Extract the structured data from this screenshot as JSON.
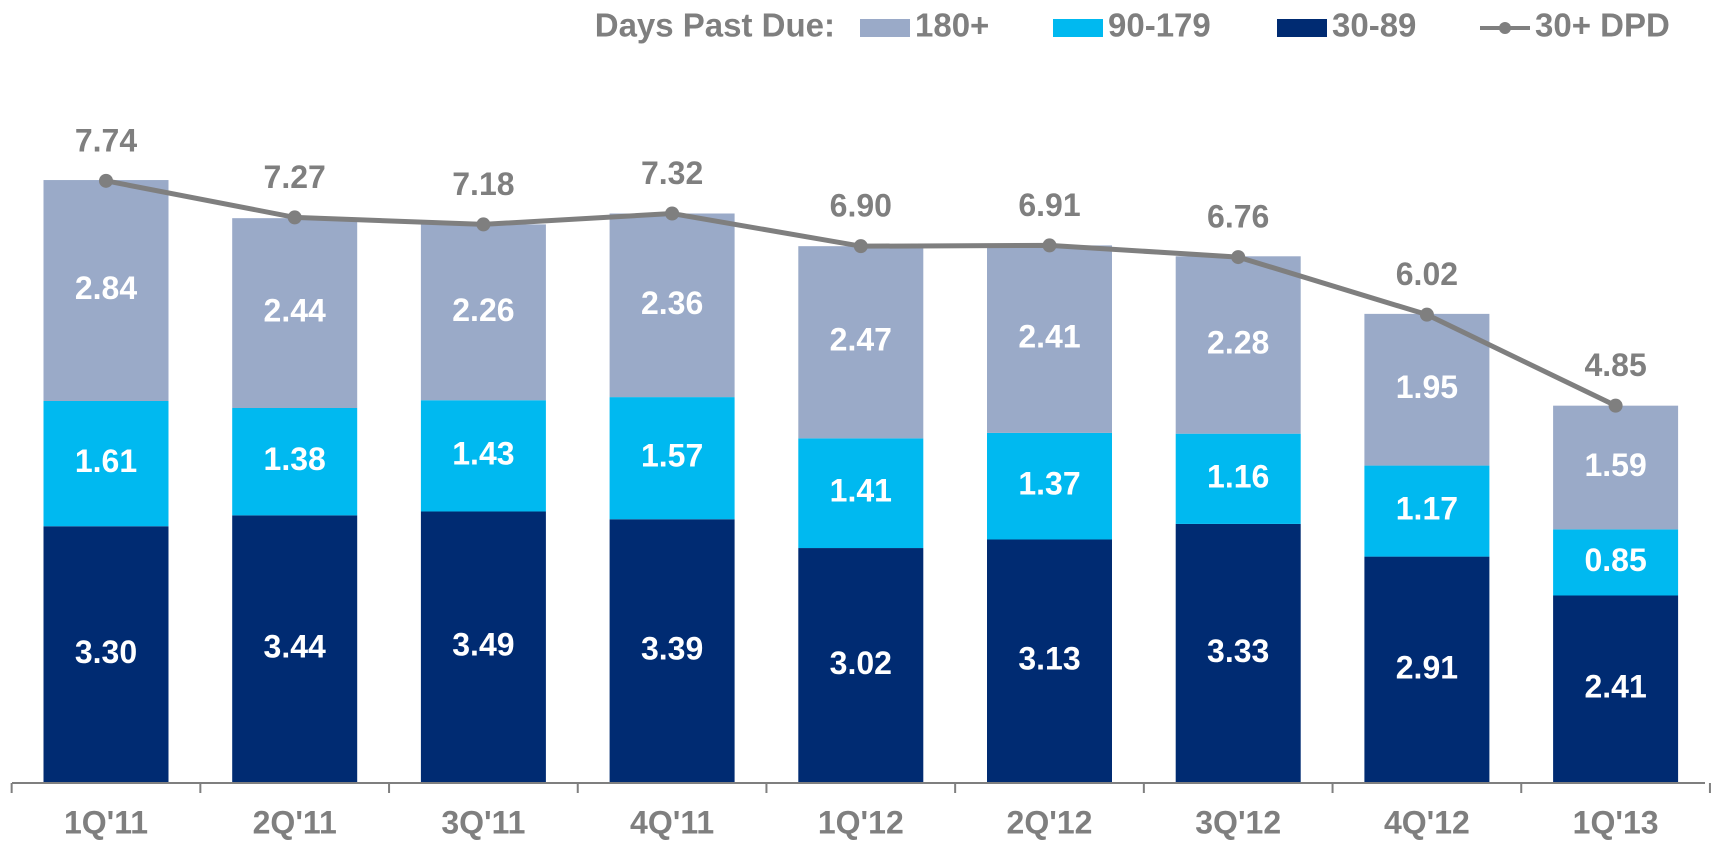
{
  "chart_data": {
    "type": "bar",
    "stacked": true,
    "legend_title": "Days Past Due:",
    "categories": [
      "1Q'11",
      "2Q'11",
      "3Q'11",
      "4Q'11",
      "1Q'12",
      "2Q'12",
      "3Q'12",
      "4Q'12",
      "1Q'13"
    ],
    "series": [
      {
        "name": "180+",
        "color": "#9aaac8",
        "values": [
          2.84,
          2.44,
          2.26,
          2.36,
          2.47,
          2.41,
          2.28,
          1.95,
          1.59
        ],
        "value_labels": [
          "2.84",
          "2.44",
          "2.26",
          "2.36",
          "2.47",
          "2.41",
          "2.28",
          "1.95",
          "1.59"
        ]
      },
      {
        "name": "90-179",
        "color": "#00b9f0",
        "values": [
          1.61,
          1.38,
          1.43,
          1.57,
          1.41,
          1.37,
          1.16,
          1.17,
          0.85
        ],
        "value_labels": [
          "1.61",
          "1.38",
          "1.43",
          "1.57",
          "1.41",
          "1.37",
          "1.16",
          "1.17",
          "0.85"
        ]
      },
      {
        "name": "30-89",
        "color": "#002b72",
        "values": [
          3.3,
          3.44,
          3.49,
          3.39,
          3.02,
          3.13,
          3.33,
          2.91,
          2.41
        ],
        "value_labels": [
          "3.30",
          "3.44",
          "3.49",
          "3.39",
          "3.02",
          "3.13",
          "3.33",
          "2.91",
          "2.41"
        ]
      },
      {
        "name": "30+ DPD",
        "type": "line",
        "color": "#7f7f7f",
        "values": [
          7.74,
          7.27,
          7.18,
          7.32,
          6.9,
          6.91,
          6.76,
          6.02,
          4.85
        ],
        "value_labels": [
          "7.74",
          "7.27",
          "7.18",
          "7.32",
          "6.90",
          "6.91",
          "6.76",
          "6.02",
          "4.85"
        ]
      }
    ],
    "ylim": [
      0,
      10
    ]
  }
}
